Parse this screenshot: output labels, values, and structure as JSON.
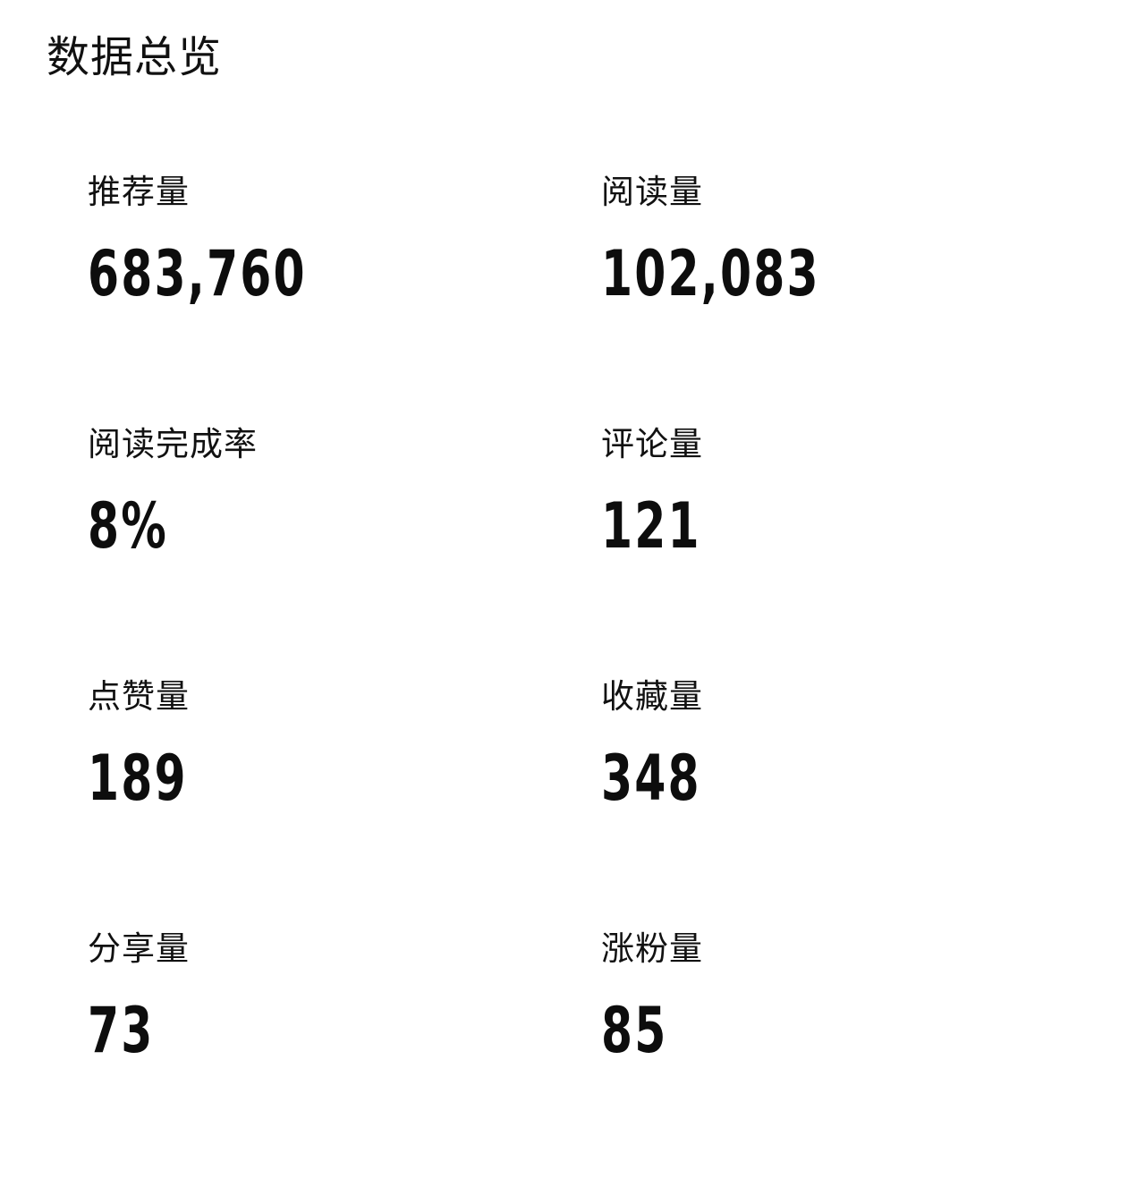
{
  "header": {
    "title": "数据总览"
  },
  "stats": [
    {
      "label": "推荐量",
      "value": "683,760"
    },
    {
      "label": "阅读量",
      "value": "102,083"
    },
    {
      "label": "阅读完成率",
      "value": "8%"
    },
    {
      "label": "评论量",
      "value": "121"
    },
    {
      "label": "点赞量",
      "value": "189"
    },
    {
      "label": "收藏量",
      "value": "348"
    },
    {
      "label": "分享量",
      "value": "73"
    },
    {
      "label": "涨粉量",
      "value": "85"
    }
  ]
}
